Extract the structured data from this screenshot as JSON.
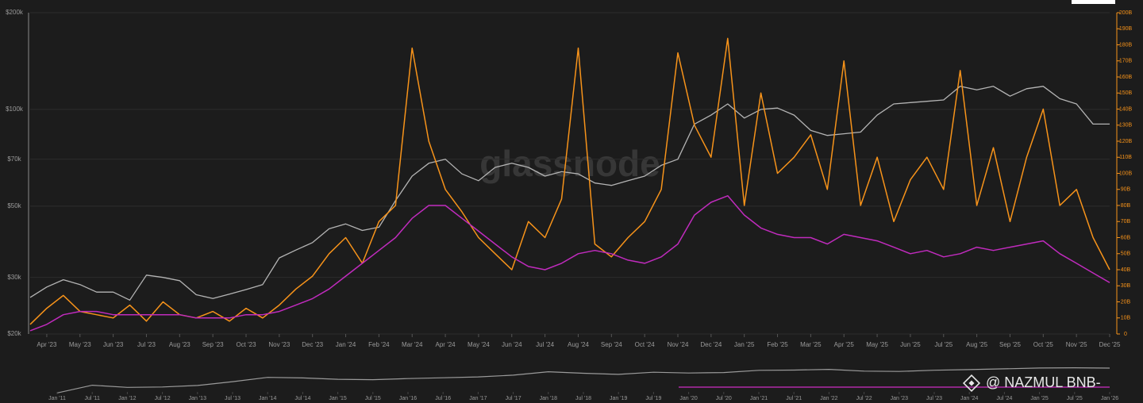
{
  "chart_data": {
    "type": "line",
    "watermark": "glassnode",
    "credit": "@ NAZMUL BNB-",
    "log_scale": true,
    "grid": true,
    "xlim": [
      0,
      65
    ],
    "xticks": [
      {
        "value": 1,
        "label": "Apr '23"
      },
      {
        "value": 3,
        "label": "May '23"
      },
      {
        "value": 5,
        "label": "Jun '23"
      },
      {
        "value": 7,
        "label": "Jul '23"
      },
      {
        "value": 9,
        "label": "Aug '23"
      },
      {
        "value": 11,
        "label": "Sep '23"
      },
      {
        "value": 13,
        "label": "Oct '23"
      },
      {
        "value": 15,
        "label": "Nov '23"
      },
      {
        "value": 17,
        "label": "Dec '23"
      },
      {
        "value": 19,
        "label": "Jan '24"
      },
      {
        "value": 21,
        "label": "Feb '24"
      },
      {
        "value": 23,
        "label": "Mar '24"
      },
      {
        "value": 25,
        "label": "Apr '24"
      },
      {
        "value": 27,
        "label": "May '24"
      },
      {
        "value": 29,
        "label": "Jun '24"
      },
      {
        "value": 31,
        "label": "Jul '24"
      },
      {
        "value": 33,
        "label": "Aug '24"
      },
      {
        "value": 35,
        "label": "Sep '24"
      },
      {
        "value": 37,
        "label": "Oct '24"
      },
      {
        "value": 39,
        "label": "Nov '24"
      },
      {
        "value": 41,
        "label": "Dec '24"
      },
      {
        "value": 43,
        "label": "Jan '25"
      },
      {
        "value": 45,
        "label": "Feb '25"
      },
      {
        "value": 47,
        "label": "Mar '25"
      },
      {
        "value": 49,
        "label": "Apr '25"
      },
      {
        "value": 51,
        "label": "May '25"
      },
      {
        "value": 53,
        "label": "Jun '25"
      },
      {
        "value": 55,
        "label": "Jul '25"
      },
      {
        "value": 57,
        "label": "Aug '25"
      },
      {
        "value": 59,
        "label": "Sep '25"
      },
      {
        "value": 61,
        "label": "Oct '25"
      },
      {
        "value": 63,
        "label": "Nov '25"
      },
      {
        "value": 65,
        "label": "Dec '25"
      }
    ],
    "ylim": [
      20000,
      200000
    ],
    "yticks": [
      {
        "value": 20000,
        "label": "$20k"
      },
      {
        "value": 30000,
        "label": "$30k"
      },
      {
        "value": 50000,
        "label": "$50k"
      },
      {
        "value": 70000,
        "label": "$70k"
      },
      {
        "value": 100000,
        "label": "$100k"
      },
      {
        "value": 200000,
        "label": "$200k"
      }
    ],
    "y2lim": [
      0,
      200
    ],
    "y2ticks": [
      0,
      {
        "value": 10,
        "label": "10B"
      },
      {
        "value": 20,
        "label": "20B"
      },
      {
        "value": 30,
        "label": "30B"
      },
      {
        "value": 40,
        "label": "40B"
      },
      {
        "value": 50,
        "label": "50B"
      },
      {
        "value": 60,
        "label": "60B"
      },
      {
        "value": 70,
        "label": "70B"
      },
      {
        "value": 80,
        "label": "80B"
      },
      {
        "value": 90,
        "label": "90B"
      },
      {
        "value": 100,
        "label": "100B"
      },
      {
        "value": 110,
        "label": "110B"
      },
      {
        "value": 120,
        "label": "120B"
      },
      {
        "value": 130,
        "label": "130B"
      },
      {
        "value": 140,
        "label": "140B"
      },
      {
        "value": 150,
        "label": "150B"
      },
      {
        "value": 160,
        "label": "160B"
      },
      {
        "value": 170,
        "label": "170B"
      },
      {
        "value": 180,
        "label": "180B"
      },
      {
        "value": 190,
        "label": "190B"
      },
      {
        "value": 200,
        "label": "200B"
      }
    ],
    "series": [
      {
        "color": "#b4b4b4",
        "axis": "y",
        "values": [
          26000,
          28000,
          29500,
          28500,
          27000,
          27000,
          25500,
          30500,
          30000,
          29300,
          26500,
          25800,
          26600,
          27500,
          28500,
          34500,
          36500,
          38500,
          42500,
          44000,
          42000,
          43000,
          52000,
          62000,
          68000,
          70000,
          63000,
          60000,
          66000,
          68000,
          66000,
          62000,
          64000,
          63000,
          59000,
          58000,
          60000,
          62000,
          67000,
          70000,
          90000,
          96000,
          104000,
          94000,
          100000,
          101000,
          96000,
          86000,
          83000,
          84000,
          85000,
          96000,
          104000,
          105000,
          106000,
          107000,
          118000,
          115000,
          118000,
          110000,
          116000,
          118000,
          108000,
          104000,
          90000,
          90000
        ]
      },
      {
        "color": "#f7931a",
        "axis": "y2",
        "values": [
          6,
          16,
          24,
          14,
          12,
          10,
          18,
          8,
          20,
          12,
          10,
          14,
          8,
          16,
          10,
          18,
          28,
          36,
          50,
          60,
          44,
          70,
          80,
          178,
          120,
          90,
          76,
          60,
          50,
          40,
          70,
          60,
          84,
          178,
          56,
          48,
          60,
          70,
          90,
          175,
          130,
          110,
          184,
          80,
          150,
          100,
          110,
          124,
          90,
          170,
          80,
          110,
          70,
          96,
          110,
          90,
          164,
          80,
          116,
          70,
          110,
          140,
          80,
          90,
          60,
          40
        ]
      },
      {
        "color": "#c02bbd",
        "axis": "y2",
        "values": [
          2,
          6,
          12,
          14,
          14,
          12,
          12,
          12,
          12,
          12,
          10,
          10,
          10,
          12,
          12,
          14,
          18,
          22,
          28,
          36,
          44,
          52,
          60,
          72,
          80,
          80,
          72,
          64,
          56,
          48,
          42,
          40,
          44,
          50,
          52,
          50,
          46,
          44,
          48,
          56,
          74,
          82,
          86,
          74,
          66,
          62,
          60,
          60,
          56,
          62,
          60,
          58,
          54,
          50,
          52,
          48,
          50,
          54,
          52,
          54,
          56,
          58,
          50,
          44,
          38,
          32
        ]
      }
    ],
    "navigator": {
      "color": "#9a9a9a",
      "log_scale": true,
      "xlim": [
        0,
        30
      ],
      "ylim": [
        0.1,
        1000000
      ],
      "xticks": [
        {
          "value": 0,
          "label": "Jan '11"
        },
        {
          "value": 1,
          "label": "Jul '11"
        },
        {
          "value": 2,
          "label": "Jan '12"
        },
        {
          "value": 3,
          "label": "Jul '12"
        },
        {
          "value": 4,
          "label": "Jan '13"
        },
        {
          "value": 5,
          "label": "Jul '13"
        },
        {
          "value": 6,
          "label": "Jan '14"
        },
        {
          "value": 7,
          "label": "Jul '14"
        },
        {
          "value": 8,
          "label": "Jan '15"
        },
        {
          "value": 9,
          "label": "Jul '15"
        },
        {
          "value": 10,
          "label": "Jan '16"
        },
        {
          "value": 11,
          "label": "Jul '16"
        },
        {
          "value": 12,
          "label": "Jan '17"
        },
        {
          "value": 13,
          "label": "Jul '17"
        },
        {
          "value": 14,
          "label": "Jan '18"
        },
        {
          "value": 15,
          "label": "Jul '18"
        },
        {
          "value": 16,
          "label": "Jan '19"
        },
        {
          "value": 17,
          "label": "Jul '19"
        },
        {
          "value": 18,
          "label": "Jan '20"
        },
        {
          "value": 19,
          "label": "Jul '20"
        },
        {
          "value": 20,
          "label": "Jan '21"
        },
        {
          "value": 21,
          "label": "Jul '21"
        },
        {
          "value": 22,
          "label": "Jan '22"
        },
        {
          "value": 23,
          "label": "Jul '22"
        },
        {
          "value": 24,
          "label": "Jan '23"
        },
        {
          "value": 25,
          "label": "Jul '23"
        },
        {
          "value": 26,
          "label": "Jan '24"
        },
        {
          "value": 27,
          "label": "Jul '24"
        },
        {
          "value": 28,
          "label": "Jan '25"
        },
        {
          "value": 29,
          "label": "Jul '25"
        },
        {
          "value": 30,
          "label": "Jan '26"
        }
      ],
      "values": [
        0.3,
        15,
        5,
        6,
        13,
        90,
        800,
        600,
        300,
        250,
        430,
        650,
        1000,
        2500,
        14000,
        6400,
        3700,
        11000,
        7200,
        9200,
        29000,
        33000,
        47000,
        19000,
        16500,
        30000,
        42000,
        63000,
        94000,
        105000,
        88000
      ]
    }
  }
}
